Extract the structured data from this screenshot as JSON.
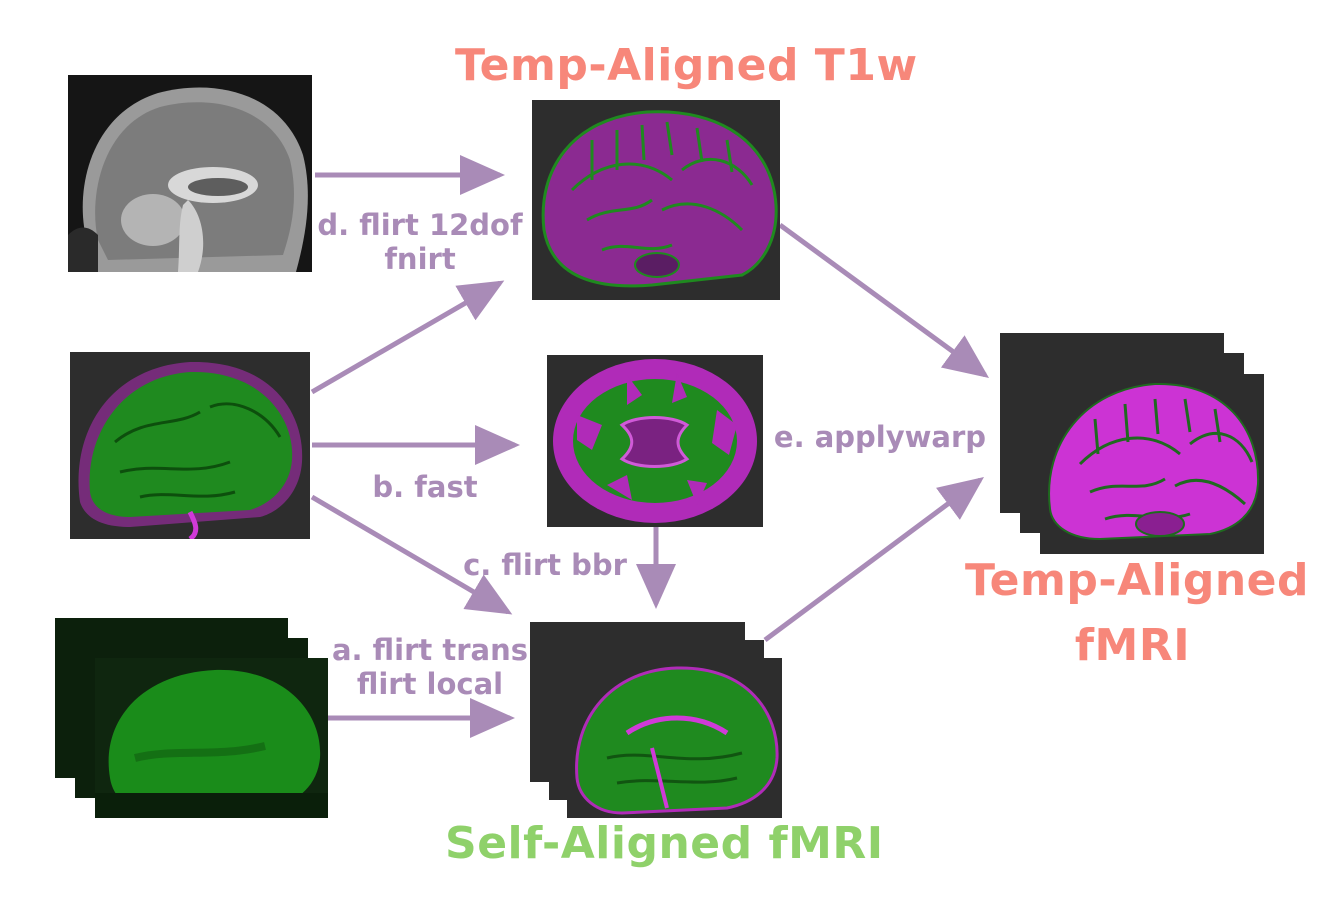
{
  "titles": {
    "temp_aligned_t1w": "Temp-Aligned T1w",
    "temp_aligned_fmri_line1": "Temp-Aligned",
    "temp_aligned_fmri_line2": "fMRI",
    "self_aligned_fmri": "Self-Aligned fMRI"
  },
  "steps": {
    "a_line1": "a. flirt trans",
    "a_line2": "flirt local",
    "b": "b. fast",
    "c": "c. flirt bbr",
    "d_line1": "d. flirt 12dof",
    "d_line2": "fnirt",
    "e": "e. applywarp"
  },
  "colors": {
    "temp_title": "#f7877a",
    "self_title": "#8fd16a",
    "arrow": "#a98bb7",
    "magenta": "#b02bb8",
    "green": "#1f8a1f",
    "dark_bg": "#2d2d2d"
  }
}
